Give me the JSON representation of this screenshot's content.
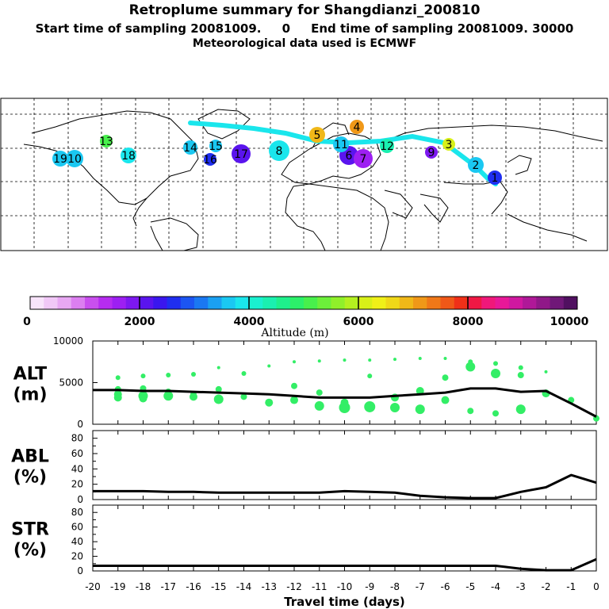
{
  "header": {
    "title": "Retroplume summary for Shangdianzi_200810",
    "sampling": "Start time of sampling 20081009.     0     End time of sampling 20081009. 30000",
    "meteo": "Meteorological data used is ECMWF"
  },
  "colorbar": {
    "label": "Altitude (m)",
    "ticks": [
      "0",
      "2000",
      "4000",
      "6000",
      "8000",
      "10000"
    ],
    "colors": [
      "#f8e4fb",
      "#f1c8f7",
      "#e8a8f3",
      "#dc7ff0",
      "#c94fee",
      "#b62cf0",
      "#9d1ff2",
      "#7d18f0",
      "#5a14ee",
      "#3a16ee",
      "#1f2ef0",
      "#1c55f2",
      "#1a78f2",
      "#1aa0f2",
      "#1ac8f2",
      "#1ae6ec",
      "#1af0d0",
      "#1af0b0",
      "#1ef08c",
      "#2cf06a",
      "#48f04c",
      "#6cf03a",
      "#90f02a",
      "#b4f020",
      "#d8f018",
      "#f0f018",
      "#f0d818",
      "#f0b818",
      "#f09818",
      "#f07818",
      "#f05818",
      "#f03018",
      "#f01844",
      "#f0187a",
      "#e81898",
      "#d018a0",
      "#b01898",
      "#901888",
      "#701878",
      "#501060"
    ]
  },
  "map": {
    "labels": [
      {
        "n": "1",
        "c": "#1f2ef0"
      },
      {
        "n": "2",
        "c": "#1ac8f2"
      },
      {
        "n": "3",
        "c": "#d8f018"
      },
      {
        "n": "4",
        "c": "#f09818"
      },
      {
        "n": "5",
        "c": "#f0b818"
      },
      {
        "n": "6",
        "c": "#5a14ee"
      },
      {
        "n": "7",
        "c": "#9d1ff2"
      },
      {
        "n": "8",
        "c": "#1ae6ec"
      },
      {
        "n": "9",
        "c": "#7d18f0"
      },
      {
        "n": "10",
        "c": "#1ac8f2"
      },
      {
        "n": "11",
        "c": "#1ac8f2"
      },
      {
        "n": "12",
        "c": "#1af0b0"
      },
      {
        "n": "13",
        "c": "#48f04c"
      },
      {
        "n": "14",
        "c": "#1ac8f2"
      },
      {
        "n": "15",
        "c": "#1ac8f2"
      },
      {
        "n": "16",
        "c": "#1f2ef0"
      },
      {
        "n": "17",
        "c": "#5a14ee"
      },
      {
        "n": "18",
        "c": "#1ae6ec"
      },
      {
        "n": "19",
        "c": "#1ac8f2"
      }
    ]
  },
  "chart_data": [
    {
      "type": "scatter",
      "name": "ALT",
      "ylabel": "ALT\n(m)",
      "ylabel_lines": [
        "ALT",
        "(m)"
      ],
      "ylim": [
        0,
        10000
      ],
      "yticks": [
        "10000",
        "5000",
        "0"
      ],
      "xlim": [
        -20,
        0
      ],
      "line_x": [
        -20,
        -19,
        -18,
        -17,
        -16,
        -15,
        -14,
        -13,
        -12,
        -11,
        -10,
        -9,
        -8,
        -7,
        -6,
        -5,
        -4,
        -3,
        -2,
        -1,
        0
      ],
      "line_y": [
        4100,
        4100,
        4000,
        4000,
        3900,
        3800,
        3700,
        3600,
        3400,
        3200,
        3200,
        3200,
        3400,
        3600,
        3800,
        4300,
        4300,
        3900,
        4000,
        2500,
        900
      ],
      "dots_x": [
        -19,
        -19,
        -19,
        -19,
        -18,
        -18,
        -18,
        -18,
        -17,
        -17,
        -17,
        -16,
        -16,
        -16,
        -15,
        -15,
        -15,
        -14,
        -14,
        -13,
        -13,
        -12,
        -12,
        -12,
        -11,
        -11,
        -11,
        -10,
        -10,
        -10,
        -9,
        -9,
        -9,
        -8,
        -8,
        -8,
        -7,
        -7,
        -7,
        -6,
        -6,
        -6,
        -5,
        -5,
        -5,
        -4,
        -4,
        -4,
        -3,
        -3,
        -3,
        -2,
        -2,
        -1,
        0
      ],
      "dots_y": [
        5600,
        4200,
        3600,
        3200,
        5800,
        4300,
        3400,
        3100,
        5900,
        3900,
        3400,
        6000,
        3600,
        3300,
        6800,
        4200,
        3000,
        6100,
        3300,
        7000,
        2600,
        7500,
        4600,
        2900,
        7600,
        3800,
        2200,
        7700,
        2600,
        2000,
        7700,
        5800,
        2100,
        7800,
        3200,
        2000,
        7900,
        4000,
        1800,
        7900,
        5600,
        2900,
        7500,
        6900,
        1600,
        7300,
        6100,
        1300,
        6800,
        5900,
        1800,
        6300,
        3700,
        2900,
        700
      ],
      "dots_r": [
        3,
        4,
        5,
        5,
        3,
        4,
        6,
        5,
        3,
        4,
        6,
        3,
        4,
        5,
        2,
        4,
        6,
        3,
        4,
        2,
        5,
        2,
        4,
        5,
        2,
        4,
        6,
        2,
        5,
        7,
        2,
        3,
        7,
        2,
        5,
        6,
        2,
        5,
        6,
        2,
        4,
        5,
        3,
        6,
        4,
        3,
        6,
        4,
        3,
        4,
        6,
        2,
        5,
        4,
        4
      ],
      "xticks": []
    },
    {
      "type": "line",
      "name": "ABL",
      "ylabel_lines": [
        "ABL",
        "(%)"
      ],
      "ylim": [
        0,
        90
      ],
      "yticks": [
        "80",
        "60",
        "40",
        "20",
        "0"
      ],
      "xlim": [
        -20,
        0
      ],
      "x": [
        -20,
        -19,
        -18,
        -17,
        -16,
        -15,
        -14,
        -13,
        -12,
        -11,
        -10,
        -9,
        -8,
        -7,
        -6,
        -5,
        -4,
        -3,
        -2,
        -1,
        0
      ],
      "y": [
        11,
        11,
        11,
        10,
        10,
        9,
        9,
        9,
        9,
        9,
        11,
        10,
        9,
        5,
        3,
        2,
        2,
        10,
        16,
        32,
        22
      ],
      "xticks": []
    },
    {
      "type": "line",
      "name": "STR",
      "ylabel_lines": [
        "STR",
        "(%)"
      ],
      "ylim": [
        0,
        90
      ],
      "yticks": [
        "80",
        "60",
        "40",
        "20",
        "0"
      ],
      "xlim": [
        -20,
        0
      ],
      "x": [
        -20,
        -19,
        -18,
        -17,
        -16,
        -15,
        -14,
        -13,
        -12,
        -11,
        -10,
        -9,
        -8,
        -7,
        -6,
        -5,
        -4,
        -3,
        -2,
        -1,
        0
      ],
      "y": [
        7,
        7,
        7,
        7,
        7,
        7,
        7,
        7,
        7,
        7,
        7,
        7,
        7,
        7,
        7,
        7,
        7,
        3,
        1,
        1,
        16
      ],
      "xticks": [
        "-20",
        "-19",
        "-18",
        "-17",
        "-16",
        "-15",
        "-14",
        "-13",
        "-12",
        "-11",
        "-10",
        "-9",
        "-8",
        "-7",
        "-6",
        "-5",
        "-4",
        "-3",
        "-2",
        "-1",
        "0"
      ],
      "xlabel": "Travel time (days)"
    }
  ]
}
